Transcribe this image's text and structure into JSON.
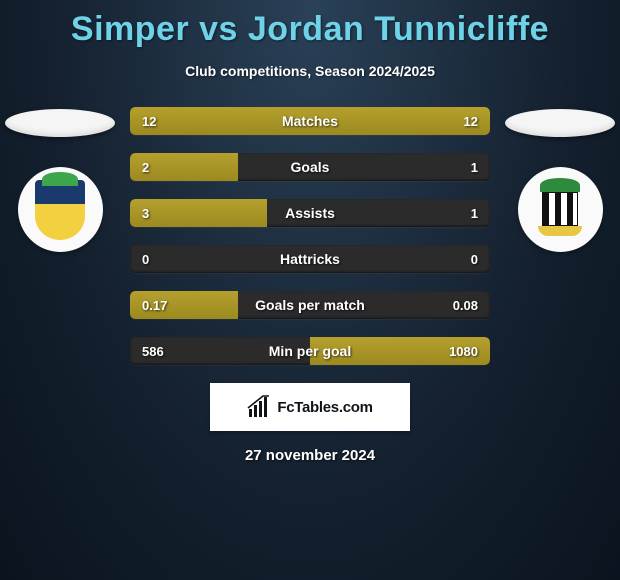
{
  "header": {
    "title": "Simper vs Jordan Tunnicliffe",
    "subtitle": "Club competitions, Season 2024/2025",
    "title_color": "#6ed3e8"
  },
  "date": "27 november 2024",
  "brand": {
    "text": "FcTables.com"
  },
  "stats_config": {
    "bar_fill_color": "#9c8a20",
    "bar_empty_color": "#2b2b2b",
    "text_color": "#ffffff"
  },
  "stats": [
    {
      "label": "Matches",
      "left_val": "12",
      "right_val": "12",
      "left_pct": 50,
      "right_pct": 50
    },
    {
      "label": "Goals",
      "left_val": "2",
      "right_val": "1",
      "left_pct": 30,
      "right_pct": 0
    },
    {
      "label": "Assists",
      "left_val": "3",
      "right_val": "1",
      "left_pct": 38,
      "right_pct": 0
    },
    {
      "label": "Hattricks",
      "left_val": "0",
      "right_val": "0",
      "left_pct": 0,
      "right_pct": 0
    },
    {
      "label": "Goals per match",
      "left_val": "0.17",
      "right_val": "0.08",
      "left_pct": 30,
      "right_pct": 0
    },
    {
      "label": "Min per goal",
      "left_val": "586",
      "right_val": "1080",
      "left_pct": 0,
      "right_pct": 50
    }
  ],
  "teams": {
    "left": {
      "crest_name": "club-crest-left"
    },
    "right": {
      "crest_name": "club-crest-right"
    }
  }
}
